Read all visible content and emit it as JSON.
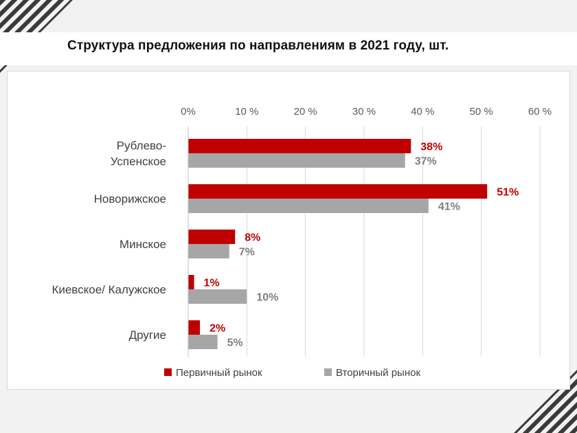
{
  "chart_data": {
    "type": "bar",
    "orientation": "horizontal",
    "title": "Структура предложения по направлениям в 2021 году, шт.",
    "categories": [
      "Рублево-\nУспенское",
      "Новорижское",
      "Минское",
      "Киевское/ Калужское",
      "Другие"
    ],
    "series": [
      {
        "name": "Первичный рынок",
        "color": "#c00000",
        "values": [
          38,
          51,
          8,
          1,
          2
        ],
        "labels": [
          "38%",
          "51%",
          "8%",
          "1%",
          "2%"
        ]
      },
      {
        "name": "Вторичный рынок",
        "color": "#a6a6a6",
        "values": [
          37,
          41,
          7,
          10,
          5
        ],
        "labels": [
          "37%",
          "41%",
          "7%",
          "10%",
          "5%"
        ]
      }
    ],
    "x_ticks": [
      "0%",
      "10 %",
      "20 %",
      "30 %",
      "40 %",
      "50 %",
      "60 %"
    ],
    "xlim": [
      0,
      60
    ],
    "xaxis_position": "top",
    "grid": true,
    "legend_position": "bottom"
  }
}
